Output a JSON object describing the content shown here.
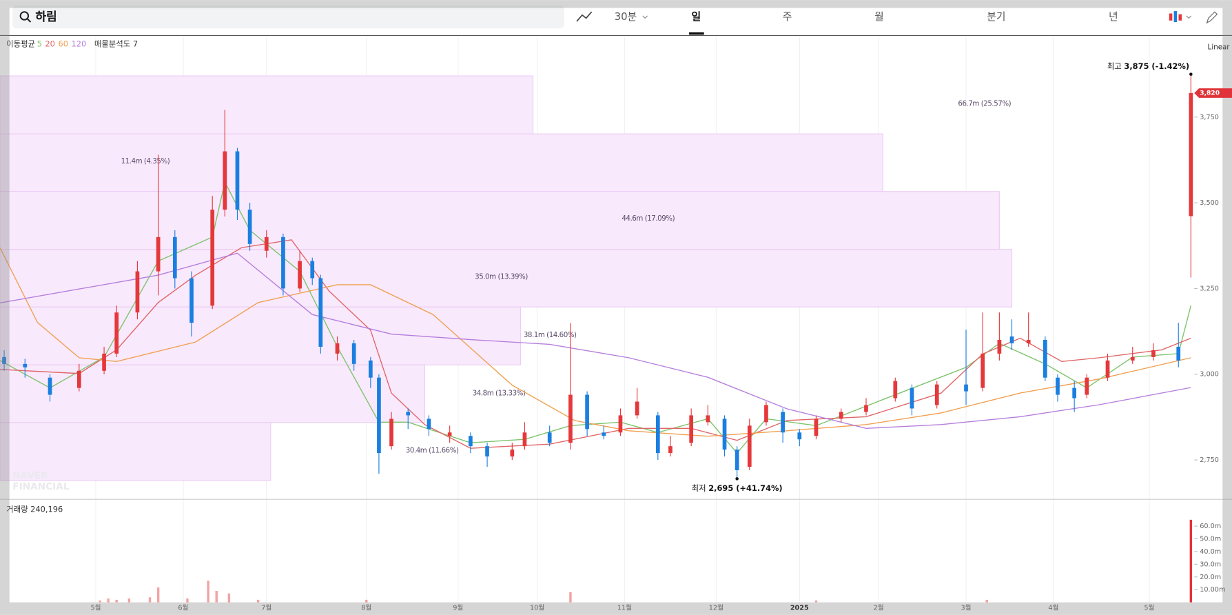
{
  "toolbar": {
    "search": "하림",
    "interval": "30분",
    "tabs": [
      "일",
      "주",
      "월",
      "분기",
      "년"
    ]
  },
  "chart_data": {
    "type": "candlestick",
    "ma_label": "이동평균",
    "scale_mode": "Linear",
    "watermark": [
      "NAVER",
      "FINANCIAL"
    ],
    "xlim": [
      0,
      287
    ],
    "xticks": [
      {
        "value": 23,
        "label": "5월"
      },
      {
        "value": 44,
        "label": "6월"
      },
      {
        "value": 64,
        "label": "7월"
      },
      {
        "value": 88,
        "label": "8월"
      },
      {
        "value": 110,
        "label": "9월"
      },
      {
        "value": 129,
        "label": "10월"
      },
      {
        "value": 150,
        "label": "11월"
      },
      {
        "value": 172,
        "label": "12월"
      },
      {
        "value": 192,
        "label": "2025"
      },
      {
        "value": 211,
        "label": "2월"
      },
      {
        "value": 232,
        "label": "3월"
      },
      {
        "value": 253,
        "label": "4월"
      },
      {
        "value": 276,
        "label": "5월"
      }
    ],
    "ylim": [
      2635,
      3988
    ],
    "yticks": [
      {
        "value": 2750,
        "label": "2,750"
      },
      {
        "value": 3000,
        "label": "3,000"
      },
      {
        "value": 3250,
        "label": "3,250"
      },
      {
        "value": 3500,
        "label": "3,500"
      },
      {
        "value": 3750,
        "label": "3,750"
      }
    ],
    "up_color": "#e5383b",
    "down_color": "#1a7fe0",
    "x": [
      1,
      6,
      12,
      19,
      25,
      28,
      33,
      38,
      42,
      46,
      51,
      54,
      57,
      60,
      64,
      68,
      72,
      75,
      77,
      81,
      85,
      89,
      91,
      94,
      98,
      103,
      108,
      113,
      117,
      123,
      126,
      132,
      137,
      141,
      145,
      149,
      153,
      158,
      161,
      166,
      170,
      174,
      177,
      180,
      184,
      188,
      192,
      196,
      202,
      208,
      215,
      219,
      225,
      232,
      236,
      240,
      243,
      247,
      251,
      254,
      258,
      261,
      266,
      272,
      277,
      283,
      286
    ],
    "open": [
      3050,
      3030,
      2990,
      2960,
      3010,
      3060,
      3180,
      3300,
      3400,
      3280,
      3200,
      3480,
      3650,
      3480,
      3360,
      3400,
      3250,
      3330,
      3280,
      3060,
      3090,
      3040,
      2990,
      2790,
      2890,
      2870,
      2820,
      2820,
      2790,
      2760,
      2790,
      2830,
      2800,
      2940,
      2830,
      2830,
      2880,
      2880,
      2770,
      2800,
      2860,
      2870,
      2780,
      2730,
      2860,
      2890,
      2830,
      2820,
      2870,
      2890,
      2930,
      2960,
      2910,
      2970,
      2960,
      3060,
      3110,
      3090,
      3100,
      2990,
      2960,
      2940,
      2990,
      3040,
      3050,
      3080,
      3461
    ],
    "high": [
      3070,
      3045,
      3000,
      3030,
      3080,
      3200,
      3330,
      3640,
      3420,
      3300,
      3520,
      3771,
      3660,
      3500,
      3420,
      3410,
      3360,
      3340,
      3290,
      3110,
      3100,
      3050,
      3000,
      2890,
      2900,
      2880,
      2850,
      2830,
      2800,
      2800,
      2860,
      2850,
      3149,
      2950,
      2850,
      2900,
      2960,
      2890,
      2820,
      2900,
      2910,
      2880,
      2790,
      2870,
      2920,
      2900,
      2840,
      2880,
      2900,
      2930,
      2990,
      2970,
      2980,
      3130,
      3180,
      3180,
      3160,
      3180,
      3110,
      3000,
      2980,
      3000,
      3060,
      3080,
      3090,
      3150,
      3875
    ],
    "low": [
      3010,
      2990,
      2920,
      2950,
      3000,
      3050,
      3160,
      3230,
      3250,
      3110,
      3190,
      3460,
      3450,
      3360,
      3340,
      3230,
      3240,
      3260,
      3060,
      3040,
      3010,
      2960,
      2710,
      2780,
      2840,
      2820,
      2800,
      2770,
      2730,
      2750,
      2780,
      2790,
      2780,
      2820,
      2810,
      2820,
      2870,
      2750,
      2760,
      2790,
      2850,
      2760,
      2695,
      2720,
      2850,
      2800,
      2790,
      2810,
      2860,
      2880,
      2920,
      2880,
      2900,
      2910,
      2950,
      3040,
      3070,
      3080,
      2980,
      2920,
      2890,
      2930,
      2980,
      3030,
      3040,
      3020,
      3282
    ],
    "close": [
      3030,
      3020,
      2940,
      3010,
      3060,
      3180,
      3300,
      3400,
      3280,
      3150,
      3480,
      3650,
      3480,
      3380,
      3400,
      3250,
      3330,
      3280,
      3080,
      3090,
      3030,
      2990,
      2770,
      2870,
      2880,
      2840,
      2830,
      2790,
      2760,
      2780,
      2830,
      2800,
      2940,
      2840,
      2820,
      2880,
      2920,
      2770,
      2790,
      2880,
      2880,
      2780,
      2720,
      2850,
      2910,
      2830,
      2810,
      2870,
      2890,
      2910,
      2980,
      2900,
      2970,
      2950,
      3060,
      3100,
      3090,
      3100,
      2990,
      2940,
      2930,
      2990,
      3040,
      3050,
      3070,
      3040,
      3820
    ],
    "series": [
      {
        "name": "5",
        "color": "#7cc36a",
        "x": [
          0,
          12,
          25,
          38,
          51,
          54,
          60,
          72,
          81,
          91,
          98,
          113,
          126,
          137,
          149,
          158,
          170,
          177,
          184,
          196,
          215,
          232,
          240,
          251,
          261,
          272,
          283,
          286
        ],
        "values": [
          3040,
          2960,
          3050,
          3330,
          3400,
          3560,
          3420,
          3300,
          3080,
          2860,
          2860,
          2800,
          2810,
          2850,
          2860,
          2830,
          2870,
          2770,
          2870,
          2850,
          2940,
          3020,
          3090,
          3030,
          2960,
          3050,
          3060,
          3200
        ]
      },
      {
        "name": "20",
        "color": "#e06666",
        "x": [
          0,
          19,
          28,
          38,
          47,
          58,
          70,
          79,
          89,
          94,
          102,
          113,
          132,
          151,
          166,
          177,
          189,
          208,
          226,
          236,
          245,
          255,
          264,
          279,
          286
        ],
        "values": [
          3014,
          3002,
          3071,
          3209,
          3289,
          3369,
          3392,
          3243,
          3128,
          2945,
          2853,
          2784,
          2796,
          2842,
          2842,
          2807,
          2865,
          2876,
          2945,
          3059,
          3105,
          3037,
          3048,
          3071,
          3105
        ]
      },
      {
        "name": "60",
        "color": "#f0a050",
        "x": [
          0,
          9,
          19,
          28,
          47,
          62,
          81,
          89,
          104,
          123,
          138,
          151,
          170,
          189,
          208,
          226,
          245,
          264,
          286
        ],
        "values": [
          3369,
          3151,
          3048,
          3037,
          3094,
          3209,
          3261,
          3261,
          3174,
          2968,
          2865,
          2835,
          2819,
          2835,
          2853,
          2887,
          2945,
          2986,
          3048
        ]
      },
      {
        "name": "120",
        "color": "#b57edc",
        "x": [
          0,
          38,
          57,
          75,
          94,
          113,
          132,
          151,
          170,
          189,
          208,
          226,
          245,
          264,
          286
        ],
        "values": [
          3208,
          3289,
          3353,
          3174,
          3117,
          3101,
          3087,
          3048,
          2991,
          2899,
          2842,
          2853,
          2876,
          2911,
          2961
        ]
      }
    ],
    "profile": {
      "label": "매물분석도 7",
      "fill": "#f8e9fc",
      "stroke": "#ebcdf3",
      "bands": [
        {
          "high": 3870,
          "low": 3701,
          "x_end": 128,
          "volume": 66.7,
          "value_label": "66.7m (25.57%)"
        },
        {
          "high": 3701,
          "low": 3533,
          "x_end": 212,
          "volume": 11.4,
          "value_label": "11.4m (4.35%)"
        },
        {
          "high": 3533,
          "low": 3364,
          "x_end": 240,
          "volume": 44.6,
          "value_label": "44.6m (17.09%)"
        },
        {
          "high": 3364,
          "low": 3196,
          "x_end": 243,
          "volume": 35.0,
          "value_label": "35.0m (13.39%)"
        },
        {
          "high": 3196,
          "low": 3027,
          "x_end": 125,
          "volume": 38.1,
          "value_label": "38.1m (14.60%)"
        },
        {
          "high": 3027,
          "low": 2859,
          "x_end": 102,
          "volume": 34.8,
          "value_label": "34.8m (13.33%)"
        },
        {
          "high": 2859,
          "low": 2690,
          "x_end": 65,
          "volume": 30.4,
          "value_label": "30.4m (11.66%)"
        }
      ]
    },
    "current": {
      "value": 3820,
      "label": "3,820",
      "color": "#e0343a"
    },
    "high_note": {
      "prefix": "최고",
      "label": "3,875 (-1.42%)",
      "x": 286,
      "value": 3875
    },
    "low_note": {
      "prefix": "최저",
      "label": "2,695 (+41.74%)",
      "x": 177,
      "value": 2695
    },
    "volume": {
      "label": "거래량 240,196",
      "ylim": [
        0,
        78
      ],
      "yticks": [
        {
          "value": 10,
          "label": "10.00m"
        },
        {
          "value": 20,
          "label": "20.0m"
        },
        {
          "value": 30,
          "label": "30.0m"
        },
        {
          "value": 40,
          "label": "40.0m"
        },
        {
          "value": 50,
          "label": "50.0m"
        },
        {
          "value": 60,
          "label": "60.0m"
        }
      ],
      "x": [
        24,
        26,
        28,
        31,
        36,
        38,
        45,
        50,
        52,
        55,
        62,
        88,
        137,
        196,
        237,
        286
      ],
      "values": [
        1.5,
        3,
        2,
        3,
        4,
        11.7,
        3,
        17,
        9,
        7,
        2,
        2,
        8,
        1.5,
        2,
        65
      ],
      "color": "#f3a3a3",
      "last_color": "#e0343a"
    }
  }
}
